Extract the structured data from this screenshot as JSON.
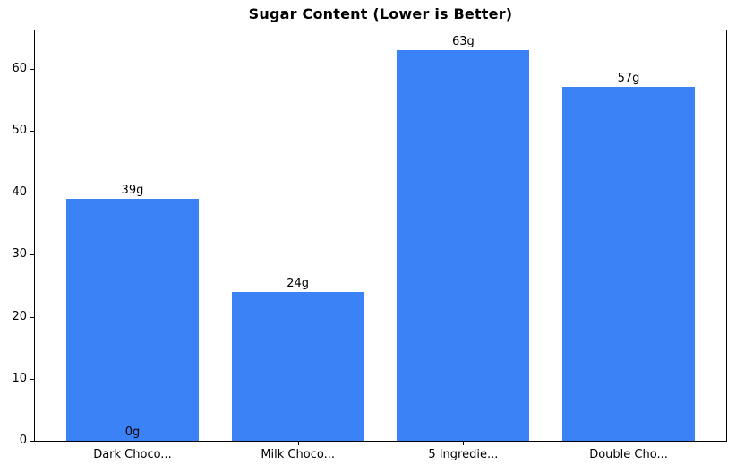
{
  "chart_data": {
    "type": "bar",
    "title": "Sugar Content (Lower is Better)",
    "categories": [
      "Dark Choco...",
      "Milk Choco...",
      "5 Ingredie...",
      "Double Cho..."
    ],
    "values": [
      39,
      24,
      63,
      57
    ],
    "bar_labels": [
      "39g",
      "24g",
      "63g",
      "57g"
    ],
    "annotations": [
      {
        "text": "0g",
        "category_index": 0,
        "value": 0
      }
    ],
    "yticks": [
      0,
      10,
      20,
      30,
      40,
      50,
      60
    ],
    "ylim": [
      0,
      66.15
    ],
    "xlabel": "",
    "ylabel": "",
    "bar_color": "#3b82f6",
    "axis_color": "#000000",
    "text_color": "#000000",
    "background_color": "#ffffff",
    "grid": false,
    "legend": false
  }
}
